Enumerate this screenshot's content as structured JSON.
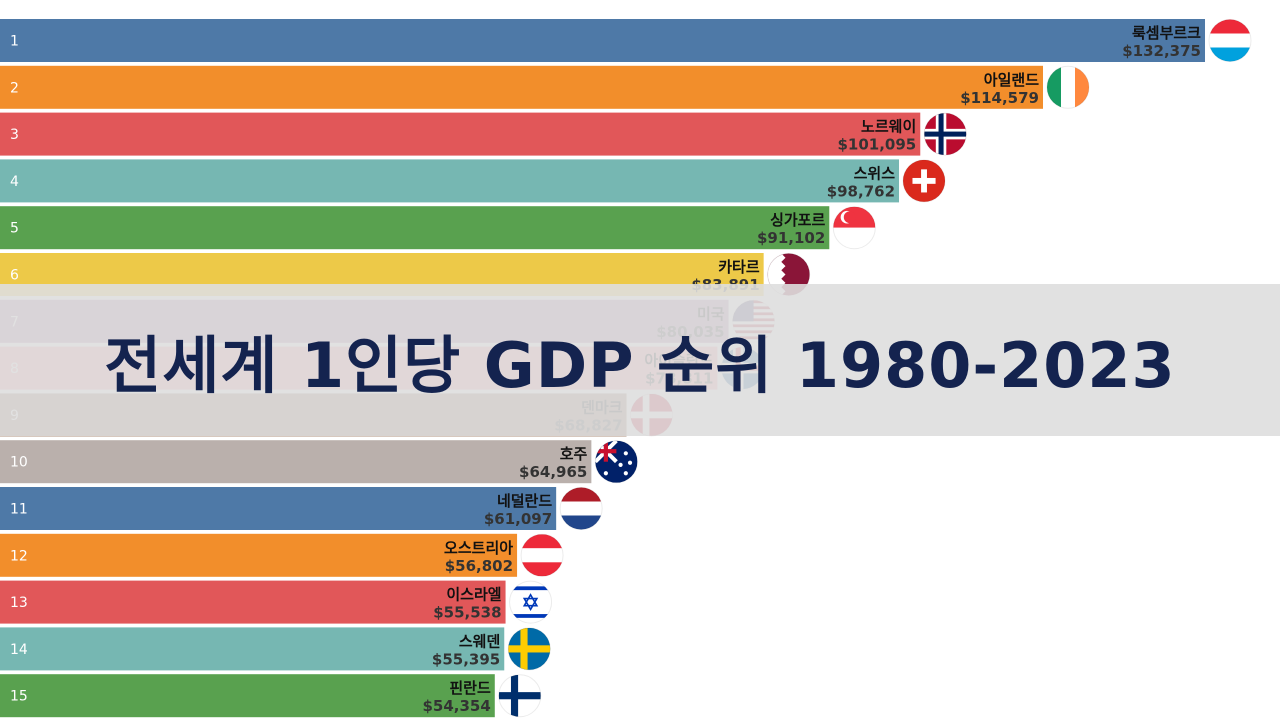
{
  "title": "전세계 1인당 GDP 순위 1980-2023",
  "chart_data": {
    "type": "bar",
    "orientation": "horizontal",
    "title": "전세계 1인당 GDP 순위 1980-2023",
    "xlim": [
      0,
      136000
    ],
    "grid": false,
    "legend": "none",
    "series": [
      {
        "ranks": [
          "1",
          "2",
          "3",
          "4",
          "5",
          "6",
          "7",
          "8",
          "9",
          "10",
          "11",
          "12",
          "13",
          "14",
          "15"
        ],
        "categories": [
          "룩셈부르크",
          "아일랜드",
          "노르웨이",
          "스위스",
          "싱가포르",
          "카타르",
          "미국",
          "아이슬란드",
          "덴마크",
          "호주",
          "네덜란드",
          "오스트리아",
          "이스라엘",
          "스웨덴",
          "핀란드"
        ],
        "values": [
          132375,
          114579,
          101095,
          98762,
          91102,
          83891,
          80035,
          78811,
          68827,
          64965,
          61097,
          56802,
          55538,
          55395,
          54354
        ],
        "value_labels": [
          "$132,375",
          "$114,579",
          "$101,095",
          "$98,762",
          "$91,102",
          "$83,891",
          "$80,035",
          "$78,811",
          "$68,827",
          "$64,965",
          "$61,097",
          "$56,802",
          "$55,538",
          "$55,395",
          "$54,354"
        ],
        "colors": [
          "#4e79a7",
          "#f28e2b",
          "#e15759",
          "#76b7b2",
          "#59a14f",
          "#edc948",
          "#b07aa1",
          "#ff9da7",
          "#9c755f",
          "#bab0ac",
          "#4e79a7",
          "#f28e2b",
          "#e15759",
          "#76b7b2",
          "#59a14f"
        ],
        "flags": [
          "luxembourg-flag",
          "ireland-flag",
          "norway-flag",
          "switzerland-flag",
          "singapore-flag",
          "qatar-flag",
          "usa-flag",
          "iceland-flag",
          "denmark-flag",
          "australia-flag",
          "netherlands-flag",
          "austria-flag",
          "israel-flag",
          "sweden-flag",
          "finland-flag"
        ]
      }
    ]
  }
}
